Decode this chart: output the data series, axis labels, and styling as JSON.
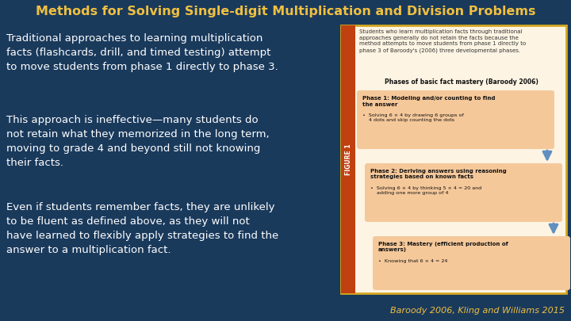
{
  "bg_color": "#1a3a5c",
  "title": "Methods for Solving Single-digit Multiplication and Division Problems",
  "title_color": "#f0c040",
  "title_fontsize": 11.5,
  "body_text_color": "#ffffff",
  "body_fontsize": 9.5,
  "para1": "Traditional approaches to learning multiplication\nfacts (flashcards, drill, and timed testing) attempt\nto move students from phase 1 directly to phase 3.",
  "para2": "This approach is ineffective—many students do\nnot retain what they memorized in the long term,\nmoving to grade 4 and beyond still not knowing\ntheir facts.",
  "para3": "Even if students remember facts, they are unlikely\nto be fluent as defined above, as they will not\nhave learned to flexibly apply strategies to find the\nanswer to a multiplication fact.",
  "citation": "Baroody 2006, Kling and Williams 2015",
  "citation_color": "#f0c040",
  "figure_label": "FIGURE 1",
  "figure_bg": "#fdf4e3",
  "figure_border": "#d4a820",
  "figure_caption": "Students who learn multiplication facts through traditional\napproaches generally do not retain the facts because the\nmethod attempts to move students from phase 1 directly to\nphase 3 of Baroody's (2006) three developmental phases.",
  "figure_header": "Phases of basic fact mastery (Baroody 2006)",
  "phase1_title": "Phase 1: Modeling and/or counting to find\nthe answer",
  "phase1_bullet": "•  Solving 6 × 4 by drawing 6 groups of\n    4 dots and skip counting the dots",
  "phase2_title": "Phase 2: Deriving answers using reasoning\nstrategies based on known facts",
  "phase2_bullet": "•  Solving 6 × 4 by thinking 5 × 4 = 20 and\n    adding one more group of 4",
  "phase3_title": "Phase 3: Mastery (efficient production of\nanswers)",
  "phase3_bullet": "•  Knowing that 6 × 4 = 24",
  "phase_box_color": "#f5c89a",
  "arrow_color": "#6090c0",
  "sidebar_color": "#c04010",
  "sidebar_text_color": "#ffffff"
}
